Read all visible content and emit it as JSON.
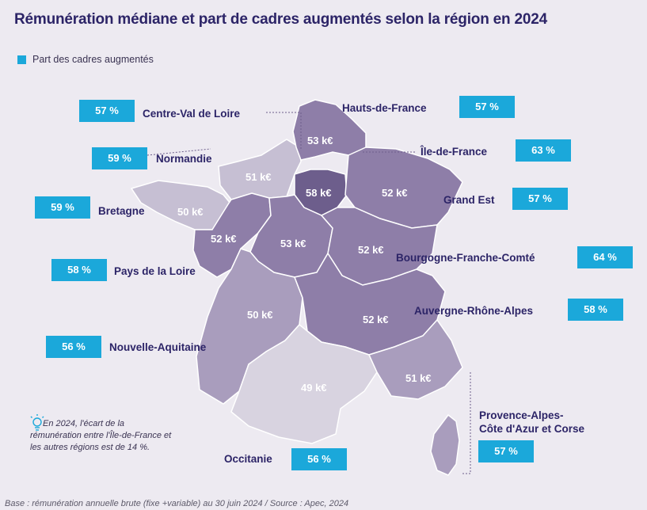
{
  "title": "Rémunération médiane et part de cadres augmentés selon la région en 2024",
  "legend": {
    "label": "Part des cadres augmentés"
  },
  "colors": {
    "accent": "#1ba8da",
    "title": "#2c2467",
    "light": "#c6bfd3",
    "lighter": "#d8d3e0",
    "mid": "#a99dbd",
    "strong": "#8e7ea8",
    "darkest": "#6d5e8c"
  },
  "regions": [
    {
      "name": "Hauts-de-France",
      "pct": "57 %",
      "salary": "53 k€"
    },
    {
      "name": "Île-de-France",
      "pct": "63 %",
      "salary": "58 k€"
    },
    {
      "name": "Grand Est",
      "pct": "57 %",
      "salary": "52 k€"
    },
    {
      "name": "Bourgogne-Franche-Comté",
      "pct": "64 %",
      "salary": "52 k€"
    },
    {
      "name": "Auvergne-Rhône-Alpes",
      "pct": "58 %",
      "salary": "52 k€"
    },
    {
      "name": "Provence-Alpes-Côte d'Azur et Corse",
      "name_line1": "Provence-Alpes-",
      "name_line2": "Côte d'Azur et Corse",
      "pct": "57 %",
      "salary": "51 k€"
    },
    {
      "name": "Occitanie",
      "pct": "56 %",
      "salary": "49 k€"
    },
    {
      "name": "Nouvelle-Aquitaine",
      "pct": "56 %",
      "salary": "50 k€"
    },
    {
      "name": "Pays de la Loire",
      "pct": "58 %",
      "salary": "52 k€"
    },
    {
      "name": "Bretagne",
      "pct": "59 %",
      "salary": "50 k€"
    },
    {
      "name": "Normandie",
      "pct": "59 %",
      "salary": "51 k€"
    },
    {
      "name": "Centre-Val de Loire",
      "pct": "57 %",
      "salary": "53 k€"
    }
  ],
  "note": "En 2024, l'écart de la rémunération entre l'Île-de-France et les autres régions est de 14 %.",
  "footer": "Base : rémunération annuelle brute (fixe +variable) au 30 juin 2024 / Source : Apec, 2024"
}
